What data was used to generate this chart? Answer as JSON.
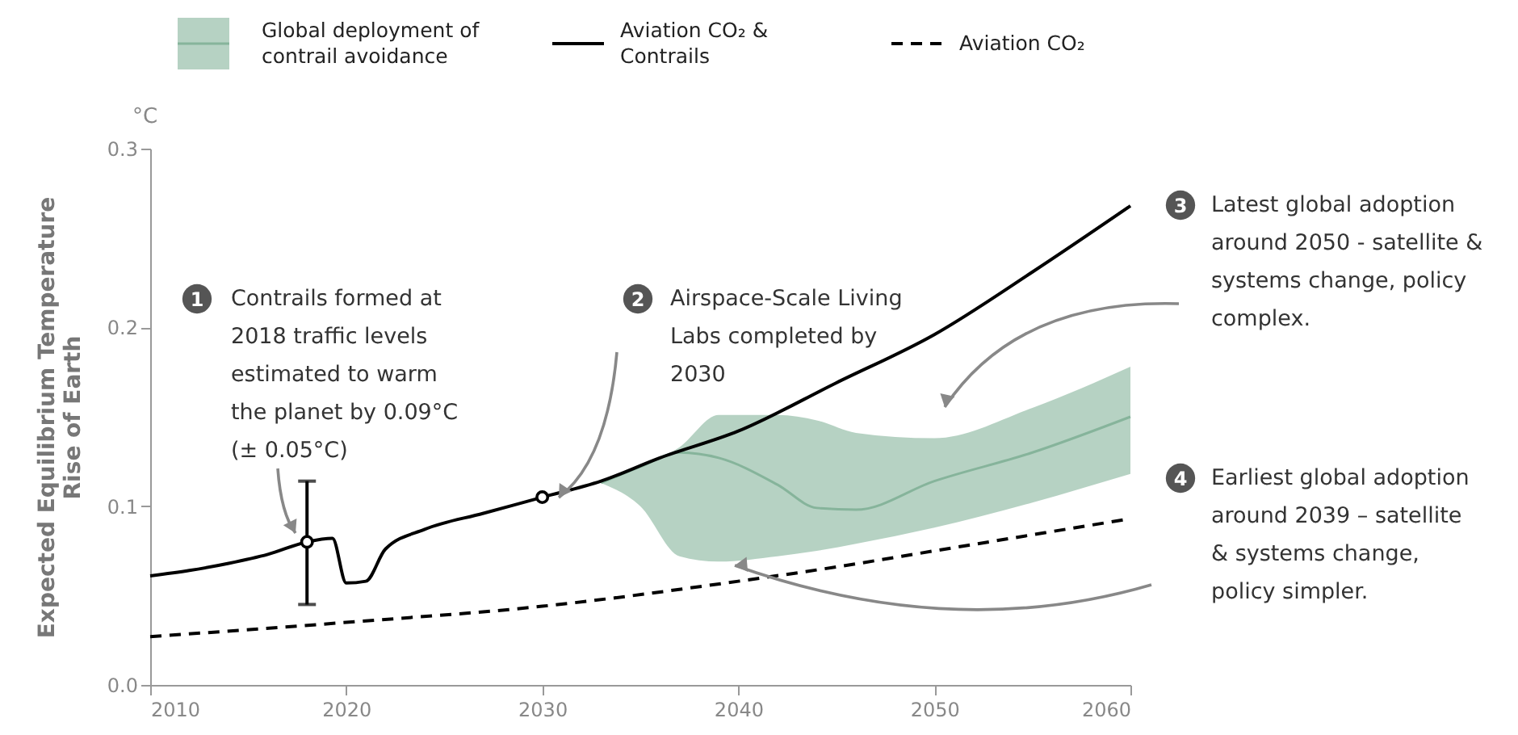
{
  "chart_data": {
    "type": "line",
    "ylabel": "Expected Equilibrium Temperature\nRise of Earth",
    "xlim": [
      2010,
      2060
    ],
    "xticks": [
      2010,
      2020,
      2030,
      2040,
      2050,
      2060
    ],
    "ylim": [
      0,
      0.3
    ],
    "yticks": [
      {
        "value": 0,
        "label": "0.0"
      },
      0.1,
      0.2,
      0.3
    ],
    "legend": "top",
    "annotations": [
      "°C",
      "1",
      "2",
      "3",
      "4",
      "Contrails formed at\n2018 traffic levels\nestimated to warm\nthe planet by 0.09°C\n(± 0.05°C)",
      "Airspace-Scale Living\nLabs completed by\n2030",
      "Latest global adoption\naround 2050 - satellite &\nsystems change, policy\ncomplex.",
      "Earliest global adoption\naround 2039 – satellite\n& systems change,\npolicy simpler."
    ],
    "series": [
      {
        "name": "Global deployment of contrail avoidance",
        "color": "#86b49b",
        "line_style": "solid",
        "x": [
          2033,
          2035,
          2037,
          2039,
          2042,
          2044,
          2046,
          2050,
          2055,
          2060
        ],
        "values": [
          0.113,
          0.122,
          0.13,
          0.127,
          0.112,
          0.099,
          0.098,
          0.114,
          0.13,
          0.15
        ],
        "lower": [
          0.113,
          0.1,
          0.072,
          0.069,
          0.072,
          0.075,
          0.079,
          0.088,
          0.102,
          0.118
        ],
        "upper": [
          0.113,
          0.122,
          0.133,
          0.151,
          0.151,
          0.148,
          0.141,
          0.138,
          0.155,
          0.178
        ]
      },
      {
        "name": "Aviation CO₂ & Contrails",
        "color": "#000000",
        "line_style": "solid",
        "x": [
          2010,
          2012,
          2014,
          2016,
          2018,
          2019.3,
          2020,
          2021,
          2022,
          2024,
          2027,
          2030,
          2033,
          2036,
          2040,
          2045,
          2050,
          2055,
          2060
        ],
        "values": [
          0.061,
          0.064,
          0.068,
          0.073,
          0.08,
          0.082,
          0.057,
          0.058,
          0.076,
          0.087,
          0.096,
          0.105,
          0.114,
          0.127,
          0.142,
          0.169,
          0.196,
          0.231,
          0.268
        ],
        "errors": [
          null,
          null,
          null,
          null,
          [
            0.045,
            0.114
          ],
          null,
          null,
          null,
          null,
          null,
          null,
          null,
          null,
          null,
          null,
          null,
          null,
          null,
          null
        ]
      },
      {
        "name": "Aviation CO₂",
        "color": "#000000",
        "line_style": "dashed",
        "x": [
          2010,
          2020,
          2030,
          2040,
          2045,
          2050,
          2055,
          2060
        ],
        "values": [
          0.027,
          0.035,
          0.044,
          0.058,
          0.066,
          0.075,
          0.084,
          0.093
        ]
      },
      {
        "type": "scatter",
        "color": "#000000",
        "marker": "circle",
        "x": [
          2018,
          2030
        ],
        "values": [
          0.08,
          0.105
        ]
      }
    ]
  }
}
